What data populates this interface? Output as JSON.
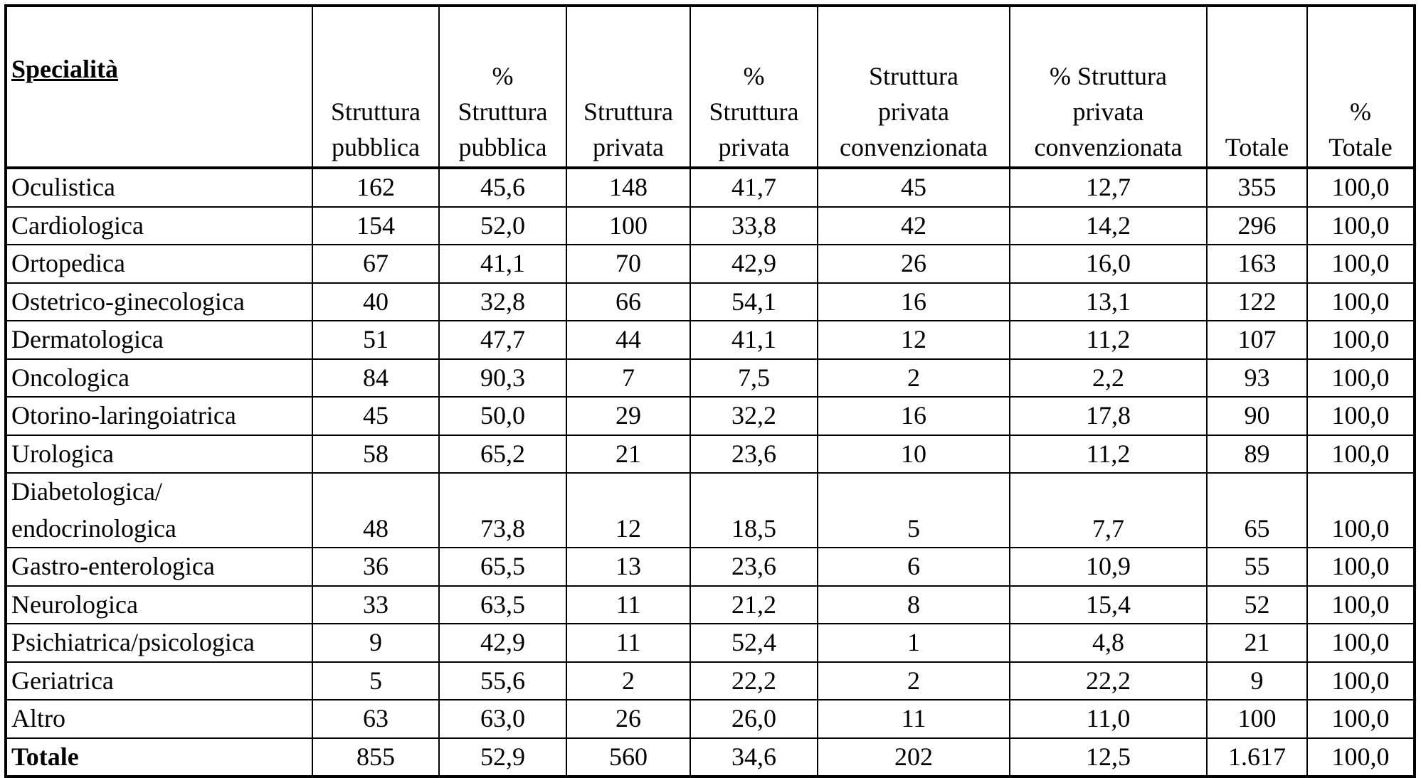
{
  "table": {
    "headers": [
      "Specialità",
      "Struttura\npubblica",
      "%\nStruttura\npubblica",
      "Struttura\nprivata",
      "%\nStruttura\nprivata",
      "Struttura\nprivata\nconvenzionata",
      "% Struttura\nprivata\nconvenzionata",
      "Totale",
      "%\nTotale"
    ],
    "rows": [
      [
        "Oculistica",
        "162",
        "45,6",
        "148",
        "41,7",
        "45",
        "12,7",
        "355",
        "100,0"
      ],
      [
        "Cardiologica",
        "154",
        "52,0",
        "100",
        "33,8",
        "42",
        "14,2",
        "296",
        "100,0"
      ],
      [
        "Ortopedica",
        "67",
        "41,1",
        "70",
        "42,9",
        "26",
        "16,0",
        "163",
        "100,0"
      ],
      [
        "Ostetrico-ginecologica",
        "40",
        "32,8",
        "66",
        "54,1",
        "16",
        "13,1",
        "122",
        "100,0"
      ],
      [
        "Dermatologica",
        "51",
        "47,7",
        "44",
        "41,1",
        "12",
        "11,2",
        "107",
        "100,0"
      ],
      [
        "Oncologica",
        "84",
        "90,3",
        "7",
        "7,5",
        "2",
        "2,2",
        "93",
        "100,0"
      ],
      [
        "Otorino-laringoiatrica",
        "45",
        "50,0",
        "29",
        "32,2",
        "16",
        "17,8",
        "90",
        "100,0"
      ],
      [
        "Urologica",
        "58",
        "65,2",
        "21",
        "23,6",
        "10",
        "11,2",
        "89",
        "100,0"
      ],
      [
        "Diabetologica/\nendocrinologica",
        "48",
        "73,8",
        "12",
        "18,5",
        "5",
        "7,7",
        "65",
        "100,0"
      ],
      [
        "Gastro-enterologica",
        "36",
        "65,5",
        "13",
        "23,6",
        "6",
        "10,9",
        "55",
        "100,0"
      ],
      [
        "Neurologica",
        "33",
        "63,5",
        "11",
        "21,2",
        "8",
        "15,4",
        "52",
        "100,0"
      ],
      [
        "Psichiatrica/psicologica",
        "9",
        "42,9",
        "11",
        "52,4",
        "1",
        "4,8",
        "21",
        "100,0"
      ],
      [
        "Geriatrica",
        "5",
        "55,6",
        "2",
        "22,2",
        "2",
        "22,2",
        "9",
        "100,0"
      ],
      [
        "Altro",
        "63",
        "63,0",
        "26",
        "26,0",
        "11",
        "11,0",
        "100",
        "100,0"
      ],
      [
        "Totale",
        "855",
        "52,9",
        "560",
        "34,6",
        "202",
        "12,5",
        "1.617",
        "100,0"
      ]
    ]
  }
}
